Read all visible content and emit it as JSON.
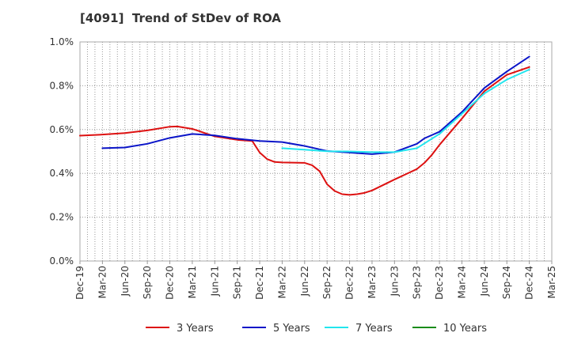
{
  "chart_data": {
    "type": "line",
    "title": "[4091]  Trend of StDev of ROA",
    "xlabel": "",
    "ylabel": "",
    "x_ticks": [
      "Dec-19",
      "Mar-20",
      "Jun-20",
      "Sep-20",
      "Dec-20",
      "Mar-21",
      "Jun-21",
      "Sep-21",
      "Dec-21",
      "Mar-22",
      "Jun-22",
      "Sep-22",
      "Dec-22",
      "Mar-23",
      "Jun-23",
      "Sep-23",
      "Dec-23",
      "Mar-24",
      "Jun-24",
      "Sep-24",
      "Dec-24",
      "Mar-25"
    ],
    "y_ticks": [
      "0.0%",
      "0.2%",
      "0.4%",
      "0.6%",
      "0.8%",
      "1.0%"
    ],
    "ylim": [
      0,
      1.0
    ],
    "y_unit": "%",
    "grid": true,
    "legend_position": "bottom",
    "series": [
      {
        "name": "3 Years",
        "color": "#dd1111",
        "x": [
          "Dec-19",
          "Mar-20",
          "Jun-20",
          "Sep-20",
          "Dec-20",
          "Jan-21",
          "Mar-21",
          "Jun-21",
          "Sep-21",
          "Nov-21",
          "Dec-21",
          "Jan-22",
          "Feb-22",
          "Mar-22",
          "Jun-22",
          "Jul-22",
          "Aug-22",
          "Sep-22",
          "Oct-22",
          "Nov-22",
          "Dec-22",
          "Jan-23",
          "Feb-23",
          "Mar-23",
          "Jun-23",
          "Sep-23",
          "Oct-23",
          "Nov-23",
          "Dec-23",
          "Mar-24",
          "Jun-24",
          "Sep-24",
          "Dec-24"
        ],
        "values": [
          0.572,
          0.577,
          0.584,
          0.596,
          0.613,
          0.614,
          0.603,
          0.569,
          0.553,
          0.548,
          0.495,
          0.465,
          0.452,
          0.45,
          0.448,
          0.437,
          0.41,
          0.35,
          0.32,
          0.305,
          0.302,
          0.305,
          0.311,
          0.322,
          0.372,
          0.42,
          0.448,
          0.485,
          0.53,
          0.65,
          0.775,
          0.85,
          0.885
        ]
      },
      {
        "name": "5 Years",
        "color": "#0a14c8",
        "x": [
          "Mar-20",
          "Jun-20",
          "Sep-20",
          "Dec-20",
          "Mar-21",
          "Jun-21",
          "Sep-21",
          "Dec-21",
          "Mar-22",
          "Jun-22",
          "Sep-22",
          "Dec-22",
          "Mar-23",
          "Jun-23",
          "Sep-23",
          "Oct-23",
          "Nov-23",
          "Dec-23",
          "Mar-24",
          "Jun-24",
          "Sep-24",
          "Dec-24"
        ],
        "values": [
          0.515,
          0.518,
          0.535,
          0.562,
          0.58,
          0.573,
          0.558,
          0.548,
          0.543,
          0.525,
          0.502,
          0.495,
          0.488,
          0.497,
          0.535,
          0.56,
          0.575,
          0.59,
          0.68,
          0.79,
          0.865,
          0.933
        ]
      },
      {
        "name": "7 Years",
        "color": "#22e5ee",
        "x": [
          "Mar-22",
          "Jun-22",
          "Sep-22",
          "Dec-22",
          "Mar-23",
          "Jun-23",
          "Sep-23",
          "Dec-23",
          "Mar-24",
          "Jun-24",
          "Sep-24",
          "Dec-24"
        ],
        "values": [
          0.515,
          0.508,
          0.501,
          0.5,
          0.497,
          0.497,
          0.515,
          0.58,
          0.672,
          0.765,
          0.828,
          0.874
        ]
      },
      {
        "name": "10 Years",
        "color": "#1a8c1a",
        "x": [],
        "values": []
      }
    ]
  }
}
